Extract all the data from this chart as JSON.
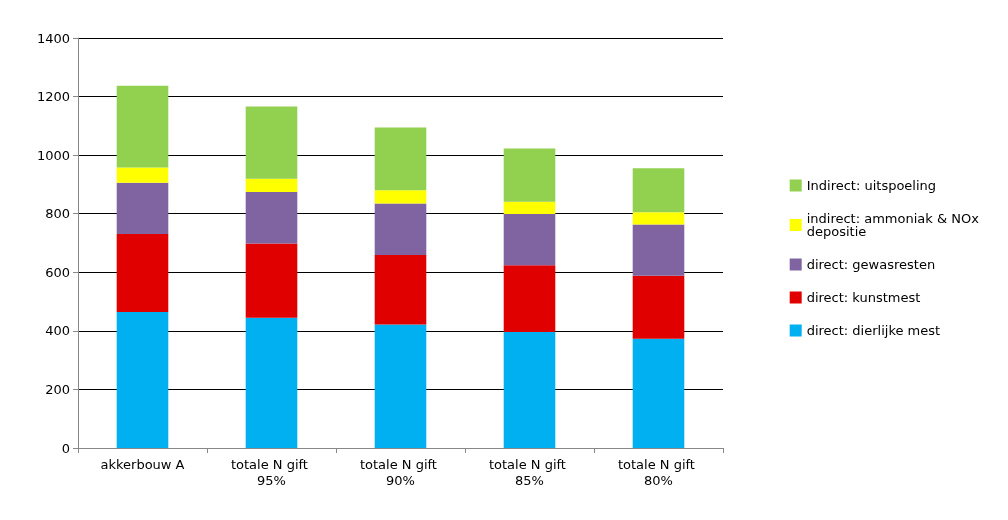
{
  "chart_data": {
    "type": "bar",
    "stacked": true,
    "categories": [
      "akkerbouw A",
      "totale N gift 95%",
      "totale N gift 90%",
      "totale N gift 85%",
      "totale N gift 80%"
    ],
    "series": [
      {
        "name": "direct: dierlijke mest",
        "color": "#00b0f0",
        "values": [
          464,
          445,
          422,
          396,
          373
        ]
      },
      {
        "name": "direct: kunstmest",
        "color": "#e00000",
        "values": [
          267,
          253,
          237,
          228,
          215
        ]
      },
      {
        "name": "direct: gewasresten",
        "color": "#8064a2",
        "values": [
          175,
          176,
          176,
          175,
          175
        ]
      },
      {
        "name": "indirect: ammoniak & NOx depositie",
        "color": "#ffff00",
        "values": [
          52,
          45,
          45,
          42,
          42
        ]
      },
      {
        "name": "Indirect: uitspoeling",
        "color": "#92d050",
        "values": [
          279,
          247,
          214,
          182,
          150
        ]
      }
    ],
    "ylim": [
      0,
      1400
    ],
    "yticks": [
      0,
      200,
      400,
      600,
      800,
      1000,
      1200,
      1400
    ],
    "grid": "y",
    "legend": "right"
  }
}
